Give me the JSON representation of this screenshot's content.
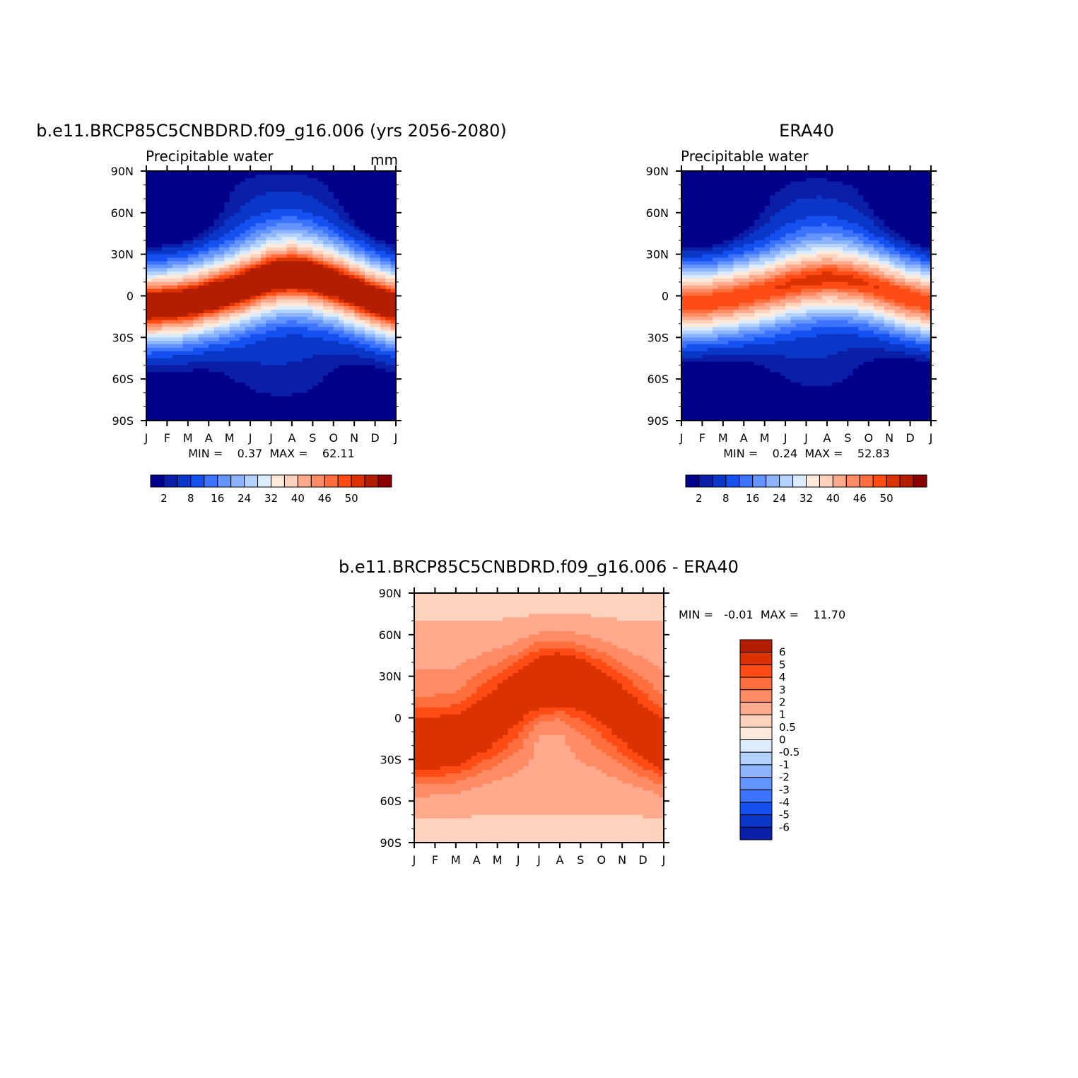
{
  "page_title": "",
  "palette": {
    "blues": [
      "#00008b",
      "#0a1ea8",
      "#0a37c8",
      "#1550f0",
      "#3c73ff",
      "#6495ff",
      "#8cb4ff",
      "#b4d2ff",
      "#dcecff"
    ],
    "reds": [
      "#ffeadc",
      "#ffd2be",
      "#ffaa8c",
      "#ff8c64",
      "#ff6e3c",
      "#ff4b14",
      "#dc3200",
      "#b41e00",
      "#8b0000"
    ]
  },
  "chart_data": [
    {
      "id": "model",
      "type": "heatmap",
      "title": "b.e11.BRCP85C5CNBDRD.f09_g16.006 (yrs 2056-2080)",
      "subtitle_left": "Precipitable water",
      "subtitle_right": "mm",
      "x_tick_labels": [
        "J",
        "F",
        "M",
        "A",
        "M",
        "J",
        "J",
        "A",
        "S",
        "O",
        "N",
        "D",
        "J"
      ],
      "y_tick_labels": [
        "90N",
        "60N",
        "30N",
        "0",
        "30S",
        "60S",
        "90S"
      ],
      "ylim": [
        -90,
        90
      ],
      "stats": "MIN =    0.37  MAX =    62.11",
      "min": 0.37,
      "max": 62.11,
      "colorbar_labels": [
        "2",
        "8",
        "16",
        "24",
        "32",
        "40",
        "46",
        "50"
      ],
      "colorbar_levels": [
        2,
        4,
        8,
        12,
        16,
        20,
        24,
        28,
        32,
        36,
        40,
        44,
        46,
        48,
        50,
        52
      ],
      "itcz_center_lat_by_month": [
        -8,
        -7,
        -5,
        -1,
        3,
        8,
        13,
        15,
        13,
        9,
        3,
        -3,
        -8
      ],
      "itcz_peak_mm": 58,
      "pole_min_mm": 1,
      "band_width_deg": 28
    },
    {
      "id": "obs",
      "type": "heatmap",
      "title": "ERA40",
      "subtitle_left": "Precipitable water",
      "subtitle_right": "",
      "x_tick_labels": [
        "J",
        "F",
        "M",
        "A",
        "M",
        "J",
        "J",
        "A",
        "S",
        "O",
        "N",
        "D",
        "J"
      ],
      "y_tick_labels": [
        "90N",
        "60N",
        "30N",
        "0",
        "30S",
        "60S",
        "90S"
      ],
      "ylim": [
        -90,
        90
      ],
      "stats": "MIN =    0.24  MAX =    52.83",
      "min": 0.24,
      "max": 52.83,
      "colorbar_labels": [
        "2",
        "8",
        "16",
        "24",
        "32",
        "40",
        "46",
        "50"
      ],
      "colorbar_levels": [
        2,
        4,
        8,
        12,
        16,
        20,
        24,
        28,
        32,
        36,
        40,
        44,
        46,
        48,
        50,
        52
      ],
      "itcz_center_lat_by_month": [
        -6,
        -5,
        -3,
        0,
        3,
        7,
        10,
        12,
        11,
        8,
        3,
        -2,
        -6
      ],
      "itcz_peak_mm": 50,
      "pole_min_mm": 0.5,
      "band_width_deg": 27
    },
    {
      "id": "diff",
      "type": "heatmap",
      "title": "b.e11.BRCP85C5CNBDRD.f09_g16.006 - ERA40",
      "x_tick_labels": [
        "J",
        "F",
        "M",
        "A",
        "M",
        "J",
        "J",
        "A",
        "S",
        "O",
        "N",
        "D",
        "J"
      ],
      "y_tick_labels": [
        "90N",
        "60N",
        "30N",
        "0",
        "30S",
        "60S",
        "90S"
      ],
      "ylim": [
        -90,
        90
      ],
      "stats": "MIN =   -0.01  MAX =    11.70",
      "min": -0.01,
      "max": 11.7,
      "colorbar_labels": [
        "6",
        "5",
        "4",
        "3",
        "2",
        "1",
        "0.5",
        "0",
        "-0.5",
        "-1",
        "-2",
        "-3",
        "-4",
        "-5",
        "-6"
      ],
      "colorbar_levels": [
        6,
        5,
        4,
        3,
        2,
        1,
        0.5,
        0,
        -0.5,
        -1,
        -2,
        -3,
        -4,
        -5,
        -6
      ]
    }
  ]
}
